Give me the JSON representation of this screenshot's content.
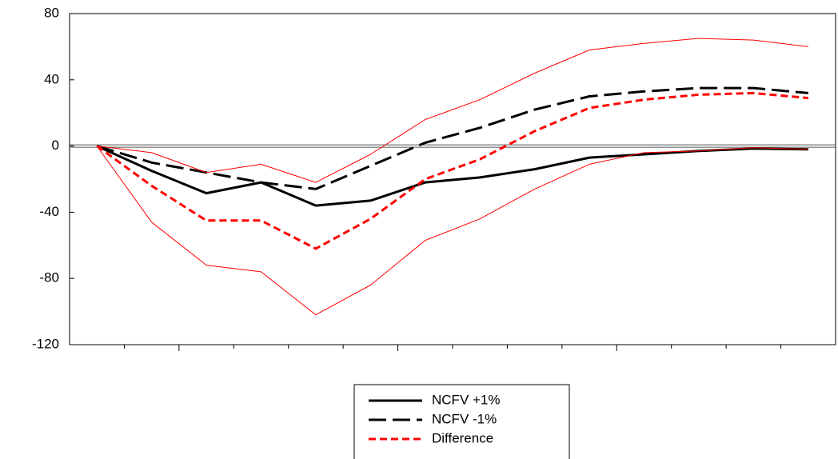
{
  "chart_data": {
    "type": "line",
    "categories": [
      null,
      null,
      null,
      null,
      null,
      null,
      null,
      null,
      null,
      null,
      null,
      null,
      null,
      null
    ],
    "ylim": [
      -120,
      80
    ],
    "yticks": [
      80,
      40,
      0,
      -40,
      -80,
      -120
    ],
    "grid": false,
    "legend": "bottom",
    "series": [
      {
        "name": "NCFV +1%",
        "color": "#000000",
        "dash": "solid",
        "width": 3,
        "values": [
          0,
          -15,
          -28.5,
          -22,
          -36,
          -33,
          -22,
          -19,
          -14,
          -7,
          -5,
          -3,
          -1.5,
          -2
        ]
      },
      {
        "name": "NCFV -1%",
        "color": "#000000",
        "dash": "long",
        "width": 3,
        "values": [
          0,
          -10,
          -16,
          -22,
          -26,
          -12,
          2,
          11,
          22,
          30,
          33,
          35,
          35,
          32
        ]
      },
      {
        "name": "Difference",
        "color": "#ff0000",
        "dash": "short",
        "width": 3,
        "values": [
          0,
          -24,
          -45,
          -45,
          -62,
          -44,
          -20,
          -8,
          9,
          23,
          28,
          31,
          32,
          29
        ]
      },
      {
        "color": "#ff0000",
        "dash": "thin",
        "width": 1,
        "values": [
          0,
          -4,
          -16,
          -11,
          -22,
          -5,
          16,
          28,
          44,
          58,
          62,
          65,
          64,
          60
        ]
      },
      {
        "color": "#ff0000",
        "dash": "thin",
        "width": 1,
        "values": [
          0,
          -46,
          -72,
          -76,
          -102,
          -84,
          -57,
          -44,
          -26,
          -11,
          -4,
          -3,
          -1,
          -2
        ]
      }
    ]
  }
}
